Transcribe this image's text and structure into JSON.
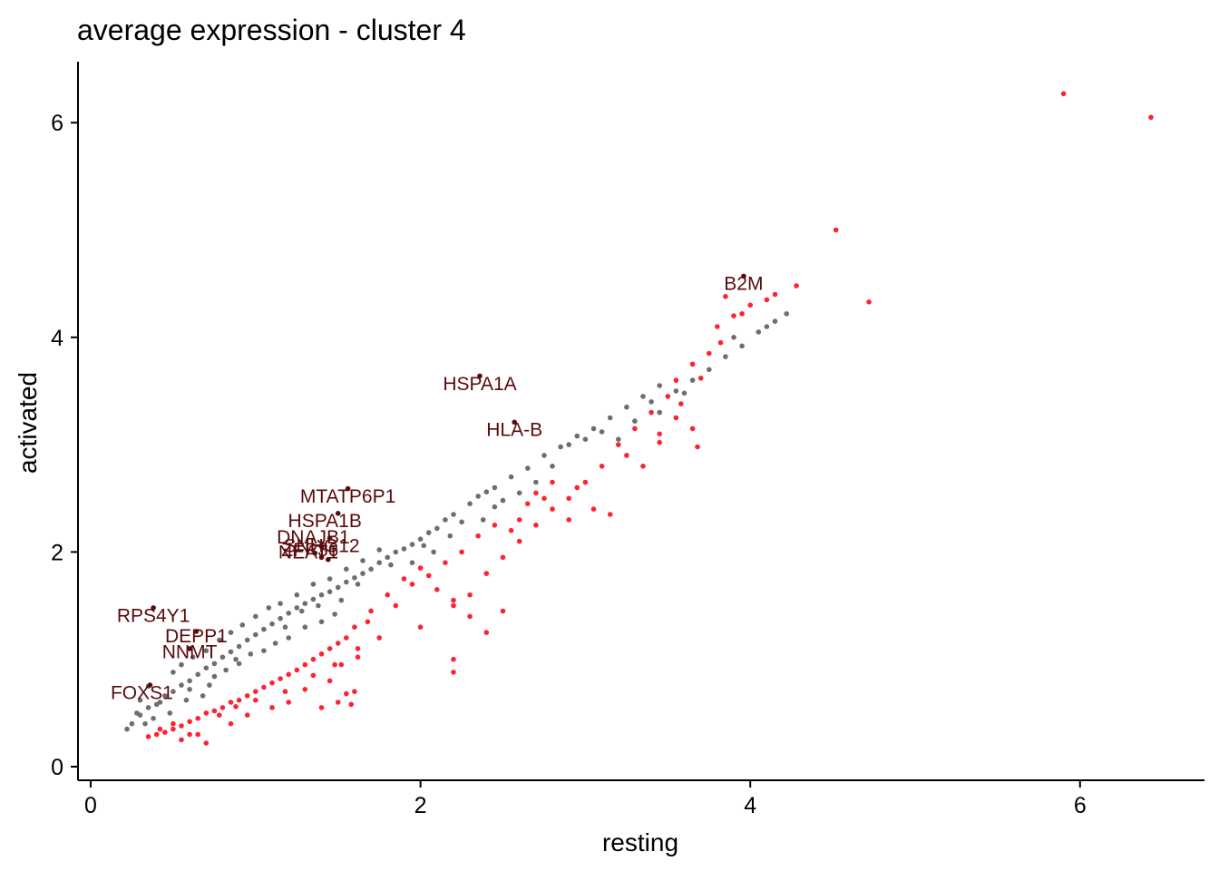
{
  "chart_data": {
    "type": "scatter",
    "title": "average expression - cluster 4",
    "xlabel": "resting",
    "ylabel": "activated",
    "xlim": [
      -0.1,
      6.75
    ],
    "ylim": [
      -0.1,
      6.6
    ],
    "xticks": [
      0,
      2,
      4,
      6
    ],
    "yticks": [
      0,
      2,
      4,
      6
    ],
    "grid": false,
    "colors": {
      "background_genes": "#6e6e6e",
      "down_in_activated": "#ff2233",
      "highlighted_genes": "#5a0a0a"
    },
    "series": [
      {
        "color_key": "background_genes",
        "points": [
          [
            0.25,
            0.4
          ],
          [
            0.3,
            0.48
          ],
          [
            0.35,
            0.55
          ],
          [
            0.4,
            0.58
          ],
          [
            0.45,
            0.66
          ],
          [
            0.5,
            0.7
          ],
          [
            0.55,
            0.76
          ],
          [
            0.6,
            0.8
          ],
          [
            0.65,
            0.86
          ],
          [
            0.7,
            0.92
          ],
          [
            0.75,
            0.96
          ],
          [
            0.8,
            1.02
          ],
          [
            0.85,
            1.07
          ],
          [
            0.9,
            1.12
          ],
          [
            0.95,
            1.18
          ],
          [
            1.0,
            1.23
          ],
          [
            1.05,
            1.28
          ],
          [
            1.1,
            1.33
          ],
          [
            1.15,
            1.38
          ],
          [
            1.2,
            1.43
          ],
          [
            1.25,
            1.48
          ],
          [
            1.3,
            1.52
          ],
          [
            1.35,
            1.56
          ],
          [
            1.4,
            1.6
          ],
          [
            1.45,
            1.63
          ],
          [
            1.5,
            1.67
          ],
          [
            1.55,
            1.72
          ],
          [
            1.6,
            1.76
          ],
          [
            1.65,
            1.8
          ],
          [
            1.7,
            1.84
          ],
          [
            1.75,
            1.9
          ],
          [
            1.8,
            1.95
          ],
          [
            1.85,
            2.0
          ],
          [
            1.9,
            2.03
          ],
          [
            1.95,
            2.07
          ],
          [
            2.0,
            2.12
          ],
          [
            2.05,
            2.18
          ],
          [
            2.1,
            2.22
          ],
          [
            2.15,
            2.3
          ],
          [
            2.2,
            2.35
          ],
          [
            2.3,
            2.45
          ],
          [
            2.35,
            2.52
          ],
          [
            2.4,
            2.56
          ],
          [
            2.45,
            2.6
          ],
          [
            2.55,
            2.7
          ],
          [
            2.65,
            2.78
          ],
          [
            2.75,
            2.9
          ],
          [
            2.85,
            2.98
          ],
          [
            2.95,
            3.08
          ],
          [
            3.05,
            3.15
          ],
          [
            3.15,
            3.25
          ],
          [
            3.25,
            3.35
          ],
          [
            3.35,
            3.45
          ],
          [
            3.45,
            3.55
          ],
          [
            3.6,
            3.48
          ],
          [
            3.75,
            3.7
          ],
          [
            3.85,
            3.82
          ],
          [
            3.95,
            3.92
          ],
          [
            4.05,
            4.05
          ],
          [
            4.15,
            4.15
          ],
          [
            4.22,
            4.22
          ],
          [
            0.3,
            0.62
          ],
          [
            0.35,
            0.75
          ],
          [
            0.5,
            0.88
          ],
          [
            0.55,
            0.95
          ],
          [
            0.62,
            1.02
          ],
          [
            0.7,
            1.08
          ],
          [
            0.78,
            1.18
          ],
          [
            0.85,
            1.25
          ],
          [
            0.92,
            1.32
          ],
          [
            1.0,
            1.4
          ],
          [
            1.08,
            1.48
          ],
          [
            1.15,
            1.52
          ],
          [
            1.25,
            1.6
          ],
          [
            1.35,
            1.7
          ],
          [
            1.45,
            1.75
          ],
          [
            1.55,
            1.84
          ],
          [
            1.65,
            1.92
          ],
          [
            1.75,
            2.02
          ],
          [
            2.25,
            2.28
          ],
          [
            2.45,
            2.42
          ],
          [
            2.6,
            2.55
          ],
          [
            2.8,
            2.8
          ],
          [
            3.2,
            3.05
          ],
          [
            3.45,
            3.3
          ],
          [
            0.28,
            0.5
          ],
          [
            0.42,
            0.6
          ],
          [
            0.6,
            0.72
          ],
          [
            0.75,
            0.84
          ],
          [
            0.9,
            0.96
          ],
          [
            1.05,
            1.08
          ],
          [
            1.2,
            1.2
          ],
          [
            1.3,
            1.3
          ],
          [
            1.4,
            1.35
          ],
          [
            1.48,
            1.42
          ],
          [
            0.22,
            0.35
          ],
          [
            0.33,
            0.4
          ],
          [
            0.48,
            0.5
          ],
          [
            0.68,
            0.66
          ],
          [
            0.82,
            0.9
          ],
          [
            1.12,
            1.15
          ],
          [
            1.28,
            1.45
          ],
          [
            1.52,
            1.55
          ],
          [
            1.95,
            1.9
          ],
          [
            2.08,
            2.0
          ],
          [
            2.5,
            2.48
          ],
          [
            3.1,
            3.12
          ],
          [
            3.3,
            3.22
          ],
          [
            3.65,
            3.6
          ],
          [
            3.9,
            4.0
          ],
          [
            4.1,
            4.1
          ],
          [
            0.38,
            0.45
          ],
          [
            0.58,
            0.62
          ],
          [
            0.72,
            0.76
          ],
          [
            0.88,
            1.0
          ],
          [
            0.97,
            1.05
          ],
          [
            1.18,
            1.3
          ],
          [
            1.38,
            1.5
          ],
          [
            1.62,
            1.7
          ],
          [
            1.82,
            1.88
          ],
          [
            2.02,
            2.06
          ],
          [
            2.18,
            2.15
          ],
          [
            2.38,
            2.3
          ],
          [
            2.7,
            2.65
          ],
          [
            2.9,
            3.0
          ],
          [
            3.0,
            3.05
          ],
          [
            3.4,
            3.4
          ],
          [
            3.55,
            3.5
          ]
        ]
      },
      {
        "color_key": "down_in_activated",
        "points": [
          [
            0.35,
            0.28
          ],
          [
            0.4,
            0.3
          ],
          [
            0.45,
            0.32
          ],
          [
            0.5,
            0.35
          ],
          [
            0.55,
            0.38
          ],
          [
            0.6,
            0.42
          ],
          [
            0.65,
            0.45
          ],
          [
            0.7,
            0.5
          ],
          [
            0.75,
            0.52
          ],
          [
            0.8,
            0.55
          ],
          [
            0.85,
            0.6
          ],
          [
            0.9,
            0.62
          ],
          [
            0.95,
            0.66
          ],
          [
            1.0,
            0.7
          ],
          [
            1.05,
            0.74
          ],
          [
            1.1,
            0.78
          ],
          [
            1.15,
            0.82
          ],
          [
            1.2,
            0.86
          ],
          [
            1.25,
            0.9
          ],
          [
            1.3,
            0.95
          ],
          [
            1.35,
            1.0
          ],
          [
            1.4,
            1.05
          ],
          [
            1.45,
            1.1
          ],
          [
            1.5,
            1.15
          ],
          [
            1.55,
            1.2
          ],
          [
            1.6,
            1.3
          ],
          [
            1.7,
            1.45
          ],
          [
            1.8,
            1.6
          ],
          [
            1.9,
            1.75
          ],
          [
            2.0,
            1.85
          ],
          [
            2.1,
            1.65
          ],
          [
            2.2,
            1.55
          ],
          [
            2.3,
            1.6
          ],
          [
            2.4,
            1.8
          ],
          [
            2.5,
            1.95
          ],
          [
            2.6,
            2.1
          ],
          [
            2.7,
            2.25
          ],
          [
            2.8,
            2.4
          ],
          [
            2.9,
            2.5
          ],
          [
            3.0,
            2.65
          ],
          [
            3.1,
            2.8
          ],
          [
            3.2,
            3.0
          ],
          [
            3.3,
            3.15
          ],
          [
            3.4,
            3.3
          ],
          [
            3.5,
            3.45
          ],
          [
            3.55,
            3.6
          ],
          [
            3.65,
            3.75
          ],
          [
            0.55,
            0.25
          ],
          [
            0.65,
            0.3
          ],
          [
            0.7,
            0.22
          ],
          [
            0.85,
            0.4
          ],
          [
            0.95,
            0.48
          ],
          [
            1.1,
            0.55
          ],
          [
            1.2,
            0.6
          ],
          [
            1.3,
            0.72
          ],
          [
            1.45,
            0.8
          ],
          [
            1.5,
            0.6
          ],
          [
            1.6,
            0.7
          ],
          [
            1.58,
            0.58
          ],
          [
            1.75,
            1.2
          ],
          [
            2.0,
            1.3
          ],
          [
            2.2,
            1.5
          ],
          [
            2.3,
            1.4
          ],
          [
            2.4,
            1.25
          ],
          [
            2.5,
            1.45
          ],
          [
            2.2,
            1.0
          ],
          [
            2.2,
            0.88
          ],
          [
            2.55,
            2.2
          ],
          [
            2.6,
            2.3
          ],
          [
            2.7,
            2.55
          ],
          [
            2.8,
            2.65
          ],
          [
            2.9,
            2.3
          ],
          [
            2.95,
            2.6
          ],
          [
            3.05,
            2.4
          ],
          [
            3.15,
            2.35
          ],
          [
            3.35,
            2.8
          ],
          [
            3.45,
            3.1
          ],
          [
            3.55,
            3.25
          ],
          [
            3.65,
            3.15
          ],
          [
            3.68,
            2.98
          ],
          [
            3.7,
            3.62
          ],
          [
            3.8,
            4.1
          ],
          [
            3.9,
            4.2
          ],
          [
            4.0,
            4.3
          ],
          [
            4.1,
            4.35
          ],
          [
            4.15,
            4.4
          ],
          [
            4.28,
            4.48
          ],
          [
            4.52,
            5.0
          ],
          [
            4.72,
            4.33
          ],
          [
            5.9,
            6.27
          ],
          [
            6.43,
            6.05
          ],
          [
            3.85,
            4.38
          ],
          [
            3.95,
            4.22
          ],
          [
            0.42,
            0.35
          ],
          [
            0.5,
            0.4
          ],
          [
            0.6,
            0.3
          ],
          [
            0.78,
            0.48
          ],
          [
            0.88,
            0.56
          ],
          [
            1.0,
            0.62
          ],
          [
            1.18,
            0.7
          ],
          [
            1.35,
            0.85
          ],
          [
            1.52,
            0.95
          ],
          [
            1.62,
            1.1
          ],
          [
            1.68,
            1.35
          ],
          [
            1.85,
            1.5
          ],
          [
            1.95,
            1.7
          ],
          [
            2.05,
            1.78
          ],
          [
            2.15,
            1.9
          ],
          [
            2.25,
            2.0
          ],
          [
            2.35,
            2.15
          ],
          [
            2.45,
            2.25
          ],
          [
            1.4,
            0.55
          ],
          [
            1.55,
            0.68
          ],
          [
            1.48,
            0.95
          ],
          [
            1.62,
            1.02
          ],
          [
            2.65,
            2.45
          ],
          [
            2.75,
            2.5
          ],
          [
            3.25,
            2.9
          ],
          [
            3.45,
            3.02
          ],
          [
            3.58,
            3.38
          ],
          [
            3.75,
            3.85
          ],
          [
            3.82,
            3.95
          ]
        ]
      },
      {
        "color_key": "highlighted_genes",
        "points": [
          [
            3.96,
            4.57
          ],
          [
            2.36,
            3.64
          ],
          [
            2.57,
            3.21
          ],
          [
            1.56,
            2.59
          ],
          [
            1.5,
            2.36
          ],
          [
            1.45,
            2.13
          ],
          [
            1.4,
            2.05
          ],
          [
            1.4,
            1.95
          ],
          [
            1.36,
            1.99
          ],
          [
            1.44,
            1.93
          ],
          [
            0.38,
            1.48
          ],
          [
            0.64,
            1.26
          ],
          [
            0.6,
            1.1
          ],
          [
            0.36,
            0.76
          ]
        ]
      }
    ],
    "annotations": [
      {
        "text": "B2M",
        "x": 3.96,
        "y": 4.57,
        "dx": 0,
        "dy": -0.13
      },
      {
        "text": "HSPA1A",
        "x": 2.36,
        "y": 3.64,
        "dx": 0,
        "dy": -0.13
      },
      {
        "text": "HLA-B",
        "x": 2.57,
        "y": 3.21,
        "dx": 0,
        "dy": -0.13
      },
      {
        "text": "MTATP6P1",
        "x": 1.56,
        "y": 2.59,
        "dx": 0,
        "dy": -0.13
      },
      {
        "text": "HSPA1B",
        "x": 1.5,
        "y": 2.36,
        "dx": -0.08,
        "dy": -0.13
      },
      {
        "text": "DNAJB1",
        "x": 1.45,
        "y": 2.13,
        "dx": -0.1,
        "dy": -0.05
      },
      {
        "text": "SNHG12",
        "x": 1.4,
        "y": 2.05,
        "dx": 0.0,
        "dy": -0.05
      },
      {
        "text": "ZFP36",
        "x": 1.38,
        "y": 2.0,
        "dx": -0.05,
        "dy": -0.04
      },
      {
        "text": "NEAT1",
        "x": 1.4,
        "y": 1.95,
        "dx": -0.08,
        "dy": -0.01
      },
      {
        "text": "RPS4Y1",
        "x": 0.38,
        "y": 1.48,
        "dx": 0.0,
        "dy": -0.13
      },
      {
        "text": "DEPP1",
        "x": 0.64,
        "y": 1.26,
        "dx": 0.0,
        "dy": -0.1
      },
      {
        "text": "NNMT",
        "x": 0.6,
        "y": 1.1,
        "dx": 0.0,
        "dy": -0.09
      },
      {
        "text": "FOXS1",
        "x": 0.36,
        "y": 0.76,
        "dx": -0.05,
        "dy": -0.13
      }
    ]
  }
}
